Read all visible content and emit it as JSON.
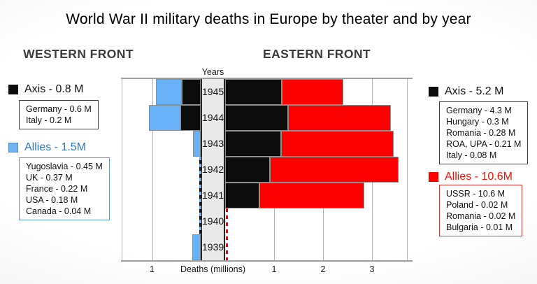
{
  "title": "World War II military deaths in Europe by theater and by year",
  "headers": {
    "west": "WESTERN FRONT",
    "east": "EASTERN FRONT"
  },
  "legends": {
    "west_axis": {
      "label": "Axis - 0.8 M",
      "items": [
        "Germany - 0.6 M",
        "Italy - 0.2 M"
      ]
    },
    "west_allies": {
      "label": "Allies - 1.5M",
      "items": [
        "Yugoslavia - 0.45 M",
        "UK - 0.37 M",
        "France - 0.22 M",
        "USA - 0.18 M",
        "Canada - 0.04 M"
      ]
    },
    "east_axis": {
      "label": "Axis - 5.2 M",
      "items": [
        "Germany - 4.3 M",
        "Hungary - 0.3 M",
        "Romania - 0.28 M",
        "ROA, UPA - 0.21 M",
        "Italy - 0.08 M"
      ]
    },
    "east_allies": {
      "label": "Allies - 10.6M",
      "items": [
        "USSR - 10.6 M",
        "Poland - 0.02 M",
        "Romania - 0.02 M",
        "Bulgaria - 0.01 M"
      ]
    }
  },
  "chart": {
    "years_label": "Years",
    "x_axis_label": "Deaths (millions)",
    "left_ticks": [
      1
    ],
    "right_ticks": [
      1,
      2,
      3
    ]
  },
  "chart_data": {
    "type": "bar",
    "orientation": "horizontal-diverging",
    "title": "World War II military deaths in Europe by theater and by year",
    "units": "millions of military deaths",
    "categories": [
      1945,
      1944,
      1943,
      1942,
      1941,
      1940,
      1939
    ],
    "series": [
      {
        "name": "Western Front Axis",
        "side": "west",
        "color": "#0c0c0c",
        "values": [
          0.39,
          0.42,
          0,
          0,
          0,
          0,
          0
        ]
      },
      {
        "name": "Western Front Allies",
        "side": "west",
        "color": "#67b1f7",
        "values": [
          0.53,
          0.65,
          0.16,
          0,
          0,
          0,
          0.17
        ]
      },
      {
        "name": "Eastern Front Axis",
        "side": "east",
        "color": "#0c0c0c",
        "values": [
          1.15,
          1.28,
          1.14,
          0.91,
          0.7,
          0,
          0
        ]
      },
      {
        "name": "Eastern Front Allies",
        "side": "east",
        "color": "#fb0200",
        "values": [
          1.27,
          2.1,
          2.3,
          2.64,
          2.14,
          0,
          0
        ]
      }
    ],
    "negligible_dashed_years": {
      "west": [
        1942,
        1941,
        1940
      ],
      "east": [
        1940,
        1939
      ]
    },
    "left_axis_range": [
      0,
      1.6
    ],
    "right_axis_range": [
      0,
      3.7
    ],
    "grid": true,
    "legend_totals": {
      "west_axis": "0.8 M",
      "west_allies": "1.5M",
      "east_axis": "5.2 M",
      "east_allies": "10.6M"
    }
  },
  "colors": {
    "axis_bar": "#0c0c0c",
    "west_allies_bar": "#67b1f7",
    "east_allies_bar": "#fb0200",
    "allies_west_text": "#2e74c5",
    "allies_east_text": "#ee1408",
    "gridline": "#b3b3b3",
    "center_column_bg": "#e9e9e9"
  }
}
